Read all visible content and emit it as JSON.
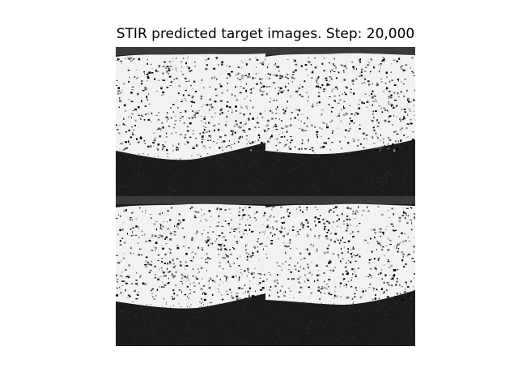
{
  "figure": {
    "title": "STIR predicted target images. Step: 20,000"
  },
  "panels": [
    {
      "name": "top-left"
    },
    {
      "name": "top-right"
    },
    {
      "name": "bottom-left"
    },
    {
      "name": "bottom-right"
    }
  ],
  "colors": {
    "background": "#ffffff",
    "tissue": "#f2f2f2",
    "dark_region": "#1c1c1c",
    "speckle": "#000000"
  }
}
